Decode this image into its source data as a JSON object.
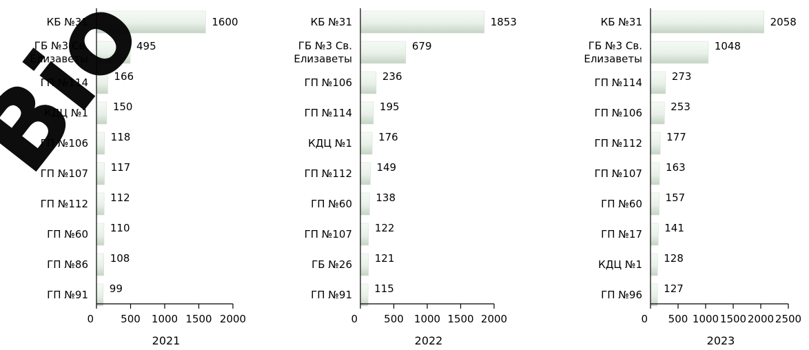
{
  "watermark": {
    "text": "Bio",
    "color": "#1a14d8"
  },
  "colors": {
    "bar_light": "#f4f8f4",
    "bar_dark": "#c9d8c9",
    "axis": "#000000"
  },
  "chart_data": [
    {
      "type": "bar",
      "orientation": "horizontal",
      "title": "2021",
      "categories": [
        "КБ №31",
        "ГБ №3 Св. Елизаветы",
        "ГП №114",
        "КДЦ №1",
        "ГП №106",
        "ГП №107",
        "ГП №112",
        "ГП №60",
        "ГП №86",
        "ГП №91"
      ],
      "category_lines": [
        [
          "КБ №31"
        ],
        [
          "ГБ №3 Св.",
          "Елизаветы"
        ],
        [
          "ГП №114"
        ],
        [
          "КДЦ №1"
        ],
        [
          "ГП №106"
        ],
        [
          "ГП №107"
        ],
        [
          "ГП №112"
        ],
        [
          "ГП №60"
        ],
        [
          "ГП №86"
        ],
        [
          "ГП №91"
        ]
      ],
      "values": [
        1600,
        495,
        166,
        150,
        118,
        117,
        112,
        110,
        108,
        99
      ],
      "value_labels": [
        "1600",
        "495",
        "166",
        "150",
        "118",
        "117",
        "112",
        "110",
        "108",
        "99"
      ],
      "xlim": [
        0,
        2000
      ],
      "ticks": [
        0,
        500,
        1000,
        1500,
        2000
      ],
      "tick_labels": [
        "0",
        "500",
        "1000",
        "1500",
        "2000"
      ]
    },
    {
      "type": "bar",
      "orientation": "horizontal",
      "title": "2022",
      "categories": [
        "КБ №31",
        "ГБ №3 Св. Елизаветы",
        "ГП №106",
        "ГП №114",
        "КДЦ №1",
        "ГП №112",
        "ГП №60",
        "ГП №107",
        "ГБ №26",
        "ГП №91"
      ],
      "category_lines": [
        [
          "КБ №31"
        ],
        [
          "ГБ №3 Св.",
          "Елизаветы"
        ],
        [
          "ГП №106"
        ],
        [
          "ГП №114"
        ],
        [
          "КДЦ №1"
        ],
        [
          "ГП №112"
        ],
        [
          "ГП №60"
        ],
        [
          "ГП №107"
        ],
        [
          "ГБ №26"
        ],
        [
          "ГП №91"
        ]
      ],
      "values": [
        1853,
        679,
        236,
        195,
        176,
        149,
        138,
        122,
        121,
        115
      ],
      "value_labels": [
        "1853",
        "679",
        "236",
        "195",
        "176",
        "149",
        "138",
        "122",
        "121",
        "115"
      ],
      "xlim": [
        0,
        2000
      ],
      "ticks": [
        0,
        500,
        1000,
        1500,
        2000
      ],
      "tick_labels": [
        "0",
        "500",
        "1000",
        "1500",
        "2000"
      ]
    },
    {
      "type": "bar",
      "orientation": "horizontal",
      "title": "2023",
      "categories": [
        "КБ №31",
        "ГБ №3 Св. Елизаветы",
        "ГП №114",
        "ГП №106",
        "ГП №112",
        "ГП №107",
        "ГП №60",
        "ГП №17",
        "КДЦ №1",
        "ГП №96"
      ],
      "category_lines": [
        [
          "КБ №31"
        ],
        [
          "ГБ №3 Св.",
          "Елизаветы"
        ],
        [
          "ГП №114"
        ],
        [
          "ГП №106"
        ],
        [
          "ГП №112"
        ],
        [
          "ГП №107"
        ],
        [
          "ГП №60"
        ],
        [
          "ГП №17"
        ],
        [
          "КДЦ №1"
        ],
        [
          "ГП №96"
        ]
      ],
      "values": [
        2058,
        1048,
        273,
        253,
        177,
        163,
        157,
        141,
        128,
        127
      ],
      "value_labels": [
        "2058",
        "1048",
        "273",
        "253",
        "177",
        "163",
        "157",
        "141",
        "128",
        "127"
      ],
      "xlim": [
        0,
        2500
      ],
      "ticks": [
        0,
        500,
        1000,
        1500,
        2000,
        2500
      ],
      "tick_labels": [
        "0",
        "500",
        "1000",
        "1500",
        "2000",
        "2500"
      ]
    }
  ]
}
